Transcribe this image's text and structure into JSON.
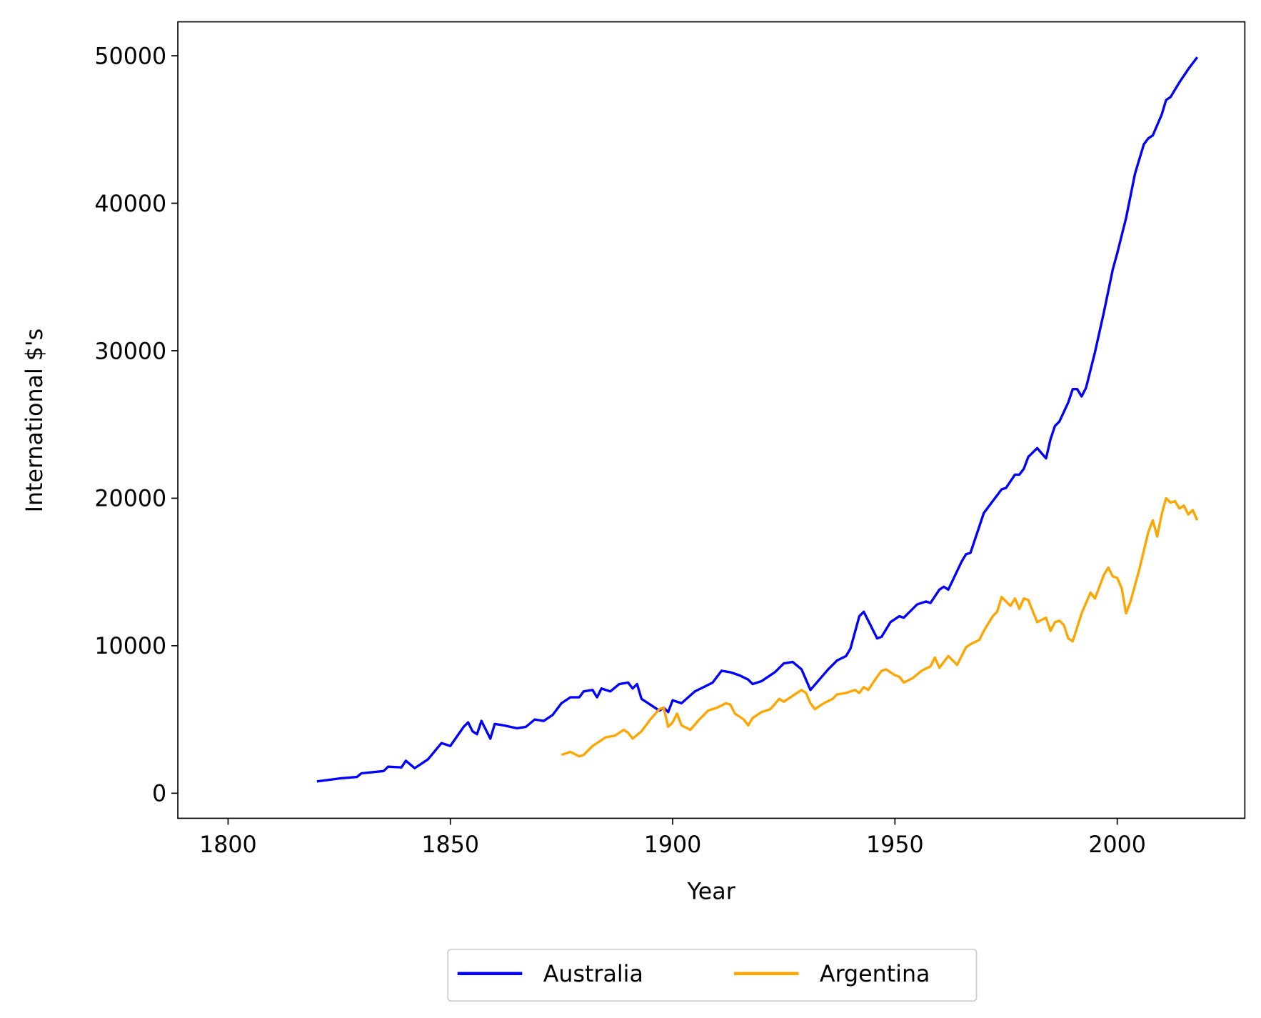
{
  "chart_data": {
    "type": "line",
    "xlabel": "Year",
    "ylabel": "International $'s",
    "xlim": [
      1788.7,
      2028.7
    ],
    "ylim": [
      -1700,
      52300
    ],
    "xticks": [
      1800,
      1850,
      1900,
      1950,
      2000
    ],
    "yticks": [
      0,
      10000,
      20000,
      30000,
      40000,
      50000
    ],
    "legend": "lower center outside",
    "series": [
      {
        "name": "Australia",
        "color": "#0000ff",
        "x": [
          1820,
          1825,
          1829,
          1830,
          1835,
          1836,
          1839,
          1840,
          1842,
          1845,
          1848,
          1850,
          1853,
          1854,
          1855,
          1856,
          1857,
          1859,
          1860,
          1862,
          1865,
          1867,
          1869,
          1871,
          1873,
          1875,
          1877,
          1879,
          1880,
          1882,
          1883,
          1884,
          1886,
          1888,
          1890,
          1891,
          1892,
          1893,
          1895,
          1896,
          1897,
          1898,
          1899,
          1900,
          1902,
          1905,
          1907,
          1909,
          1911,
          1913,
          1915,
          1917,
          1918,
          1920,
          1923,
          1925,
          1927,
          1929,
          1931,
          1933,
          1935,
          1937,
          1939,
          1940,
          1942,
          1943,
          1946,
          1947,
          1949,
          1951,
          1952,
          1955,
          1957,
          1958,
          1960,
          1961,
          1962,
          1965,
          1966,
          1967,
          1970,
          1972,
          1974,
          1975,
          1977,
          1978,
          1979,
          1980,
          1982,
          1984,
          1985,
          1986,
          1987,
          1989,
          1990,
          1991,
          1992,
          1993,
          1995,
          1997,
          1999,
          2000,
          2002,
          2004,
          2005,
          2006,
          2007,
          2008,
          2010,
          2011,
          2012,
          2014,
          2016,
          2018
        ],
        "values": [
          800,
          1000,
          1100,
          1350,
          1500,
          1800,
          1750,
          2200,
          1700,
          2300,
          3400,
          3200,
          4500,
          4800,
          4200,
          4000,
          4900,
          3700,
          4700,
          4600,
          4400,
          4500,
          5000,
          4900,
          5300,
          6100,
          6500,
          6500,
          6900,
          7000,
          6500,
          7100,
          6900,
          7400,
          7500,
          7100,
          7400,
          6400,
          6000,
          5800,
          5600,
          5800,
          5500,
          6300,
          6100,
          6900,
          7200,
          7500,
          8300,
          8200,
          8000,
          7700,
          7400,
          7600,
          8200,
          8800,
          8900,
          8400,
          7000,
          7700,
          8400,
          9000,
          9300,
          9800,
          12000,
          12300,
          10500,
          10600,
          11600,
          12000,
          11900,
          12800,
          13000,
          12900,
          13800,
          14000,
          13800,
          15700,
          16200,
          16300,
          19000,
          19800,
          20600,
          20700,
          21600,
          21600,
          22000,
          22800,
          23400,
          22700,
          24000,
          24900,
          25200,
          26500,
          27400,
          27400,
          26900,
          27500,
          29900,
          32600,
          35500,
          36600,
          39000,
          42000,
          43000,
          44000,
          44400,
          44600,
          46000,
          47000,
          47200,
          48200,
          49100,
          49900
        ]
      },
      {
        "name": "Argentina",
        "color": "#ffa500",
        "x": [
          1875,
          1877,
          1879,
          1880,
          1882,
          1884,
          1885,
          1887,
          1889,
          1890,
          1891,
          1893,
          1895,
          1897,
          1898,
          1899,
          1900,
          1901,
          1902,
          1904,
          1906,
          1908,
          1910,
          1912,
          1913,
          1914,
          1916,
          1917,
          1918,
          1920,
          1922,
          1924,
          1925,
          1927,
          1929,
          1930,
          1931,
          1932,
          1934,
          1936,
          1937,
          1939,
          1941,
          1942,
          1943,
          1944,
          1946,
          1947,
          1948,
          1950,
          1951,
          1952,
          1954,
          1956,
          1958,
          1959,
          1960,
          1962,
          1964,
          1966,
          1967,
          1969,
          1970,
          1972,
          1973,
          1974,
          1975,
          1976,
          1977,
          1978,
          1979,
          1980,
          1982,
          1984,
          1985,
          1986,
          1987,
          1988,
          1989,
          1990,
          1992,
          1994,
          1995,
          1997,
          1998,
          1999,
          2000,
          2001,
          2002,
          2003,
          2005,
          2007,
          2008,
          2009,
          2010,
          2011,
          2012,
          2013,
          2014,
          2015,
          2016,
          2017,
          2018
        ],
        "values": [
          2600,
          2800,
          2500,
          2600,
          3200,
          3600,
          3800,
          3900,
          4300,
          4100,
          3700,
          4200,
          5000,
          5700,
          5800,
          4500,
          4800,
          5400,
          4600,
          4300,
          5000,
          5600,
          5800,
          6100,
          6000,
          5400,
          5000,
          4600,
          5100,
          5500,
          5700,
          6400,
          6200,
          6600,
          7000,
          6800,
          6100,
          5700,
          6100,
          6400,
          6700,
          6800,
          7000,
          6800,
          7200,
          7000,
          7900,
          8300,
          8400,
          8000,
          7900,
          7500,
          7800,
          8300,
          8600,
          9200,
          8500,
          9300,
          8700,
          9900,
          10100,
          10400,
          11000,
          12000,
          12300,
          13300,
          13000,
          12700,
          13200,
          12500,
          13200,
          13100,
          11600,
          11900,
          11000,
          11600,
          11700,
          11400,
          10500,
          10300,
          12200,
          13600,
          13200,
          14800,
          15300,
          14700,
          14600,
          13900,
          12200,
          13000,
          15200,
          17700,
          18500,
          17400,
          18900,
          20000,
          19700,
          19800,
          19300,
          19500,
          18900,
          19200,
          18500
        ]
      }
    ]
  }
}
